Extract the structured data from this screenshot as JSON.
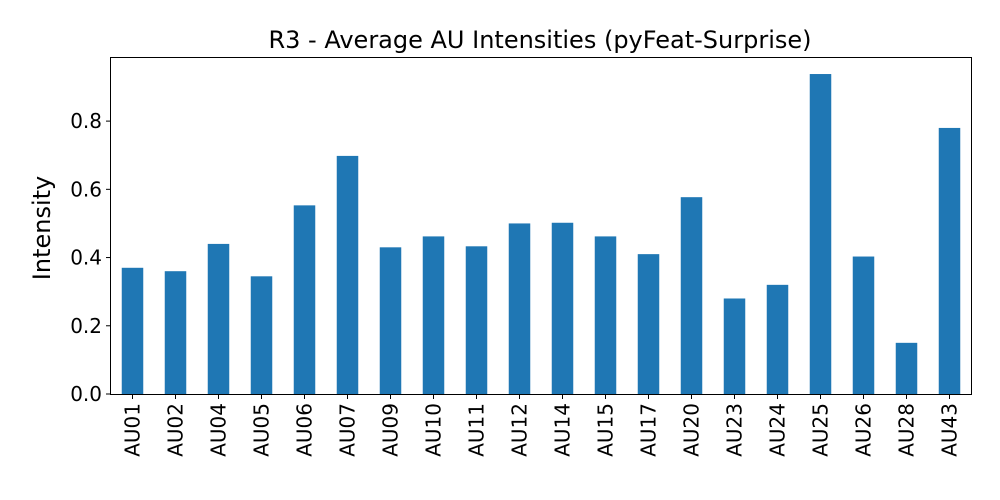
{
  "chart_data": {
    "type": "bar",
    "title": "R3 - Average AU Intensities (pyFeat-Surprise)",
    "xlabel": "",
    "ylabel": "Intensity",
    "categories": [
      "AU01",
      "AU02",
      "AU04",
      "AU05",
      "AU06",
      "AU07",
      "AU09",
      "AU10",
      "AU11",
      "AU12",
      "AU14",
      "AU15",
      "AU17",
      "AU20",
      "AU23",
      "AU24",
      "AU25",
      "AU26",
      "AU28",
      "AU43"
    ],
    "values": [
      0.37,
      0.36,
      0.44,
      0.345,
      0.553,
      0.698,
      0.43,
      0.462,
      0.433,
      0.5,
      0.502,
      0.462,
      0.41,
      0.577,
      0.28,
      0.32,
      0.938,
      0.403,
      0.15,
      0.78
    ],
    "yticks": [
      0.0,
      0.2,
      0.4,
      0.6,
      0.8
    ],
    "ytick_labels": [
      "0.0",
      "0.2",
      "0.4",
      "0.6",
      "0.8"
    ],
    "ylim": [
      0,
      0.985
    ],
    "grid": false,
    "bar_color": "#1f77b4"
  }
}
